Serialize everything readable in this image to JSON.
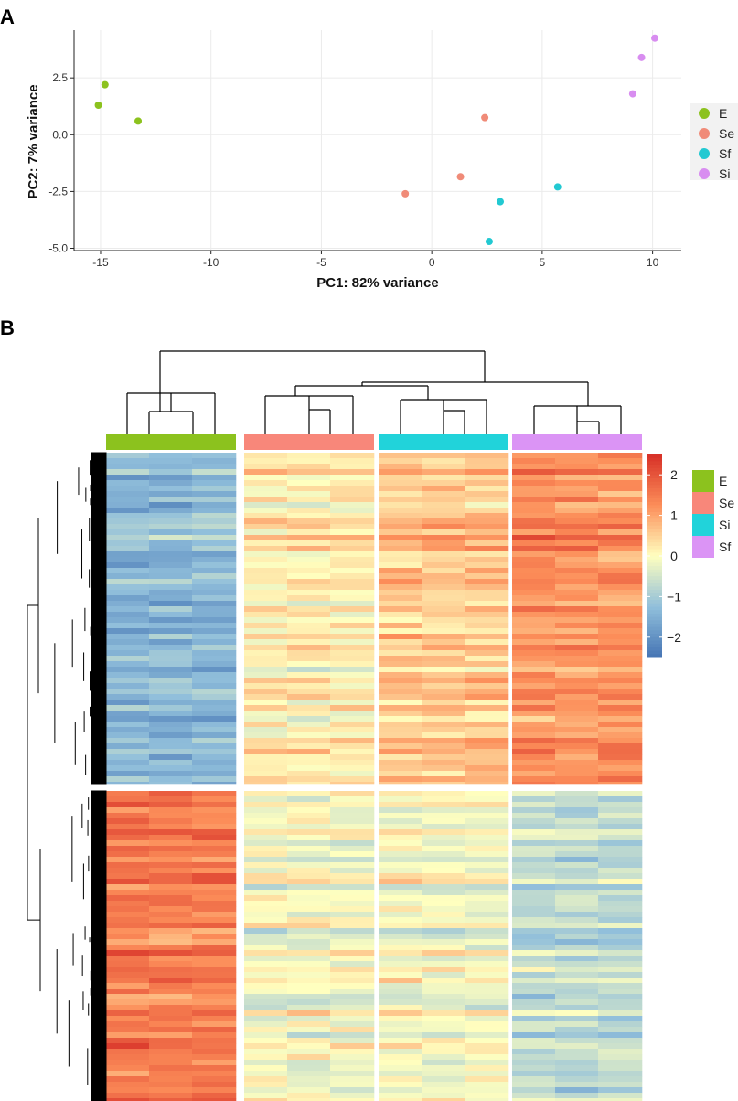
{
  "chart_data": [
    {
      "panel": "A",
      "type": "scatter",
      "xlabel": "PC1: 82% variance",
      "ylabel": "PC2: 7% variance",
      "xlim": [
        -16.2,
        11.3
      ],
      "ylim": [
        -5.1,
        4.6
      ],
      "xticks": [
        -15,
        -10,
        -5,
        0,
        5,
        10
      ],
      "yticks": [
        -5.0,
        -2.5,
        0.0,
        2.5
      ],
      "xtick_labels": [
        "-15",
        "-10",
        "-5",
        "0",
        "5",
        "10"
      ],
      "ytick_labels": [
        "-5.0",
        "-2.5",
        "0.0",
        "2.5"
      ],
      "grid": true,
      "legend_position": "right",
      "series": [
        {
          "name": "E",
          "color": "#8CC21E",
          "points": [
            [
              -14.8,
              2.2
            ],
            [
              -15.1,
              1.3
            ],
            [
              -13.3,
              0.6
            ]
          ]
        },
        {
          "name": "Se",
          "color": "#F08B78",
          "points": [
            [
              2.4,
              0.75
            ],
            [
              1.3,
              -1.85
            ],
            [
              -1.2,
              -2.6
            ]
          ]
        },
        {
          "name": "Sf",
          "color": "#22C9D2",
          "points": [
            [
              5.7,
              -2.3
            ],
            [
              3.1,
              -2.95
            ],
            [
              2.6,
              -4.7
            ]
          ]
        },
        {
          "name": "Si",
          "color": "#D88DF0",
          "points": [
            [
              10.1,
              4.25
            ],
            [
              9.5,
              3.4
            ],
            [
              9.1,
              1.8
            ]
          ]
        }
      ]
    },
    {
      "panel": "B",
      "type": "heatmap",
      "groups": [
        {
          "name": "E",
          "color": "#8CC21E"
        },
        {
          "name": "Se",
          "color": "#F8877A"
        },
        {
          "name": "Si",
          "color": "#21D3DA"
        },
        {
          "name": "Sf",
          "color": "#DB94F5"
        }
      ],
      "columns_per_group": 3,
      "row_clusters": [
        {
          "name": "upper",
          "group_levels": [
            -1.4,
            0.2,
            0.6,
            1.2
          ]
        },
        {
          "name": "lower",
          "group_levels": [
            1.5,
            -0.1,
            -0.1,
            -0.7
          ]
        }
      ],
      "color_scale": {
        "min": -2.5,
        "max": 2.5,
        "ticks": [
          2,
          1,
          0,
          -1,
          -2
        ],
        "tick_labels": [
          "2",
          "1",
          "0",
          "−1",
          "−2"
        ],
        "colors": [
          "#4575B4",
          "#91BFDB",
          "#FFFFBF",
          "#FC8D59",
          "#D73027"
        ]
      },
      "column_dendrogram": "top",
      "row_dendrogram": "left"
    }
  ],
  "panel_labels": {
    "a": "A",
    "b": "B"
  }
}
